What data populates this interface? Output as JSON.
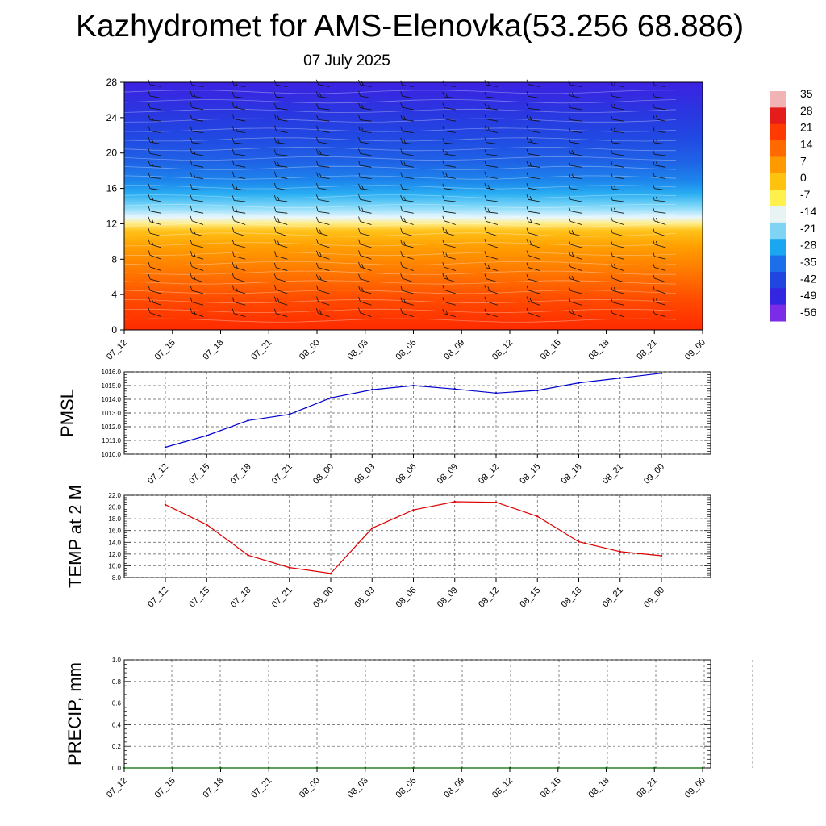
{
  "title": "Kazhydromet for AMS-Elenovka(53.256 68.886)",
  "subtitle": "07 July 2025",
  "colors": {
    "pmsl_line": "#0000cc",
    "temp_line": "#dd0000",
    "precip_line": "#006400",
    "grid": "#555555"
  },
  "chart_data": [
    {
      "type": "heatmap",
      "title": "",
      "x_ticks": [
        "07_12",
        "07_15",
        "07_18",
        "07_21",
        "08_00",
        "08_03",
        "08_06",
        "08_09",
        "08_12",
        "08_15",
        "08_18",
        "08_21",
        "09_00"
      ],
      "y_ticks": [
        "0",
        "4",
        "8",
        "12",
        "16",
        "20",
        "24",
        "28"
      ],
      "ylim": [
        0,
        28
      ],
      "colorbar": {
        "labels": [
          "35",
          "28",
          "21",
          "14",
          "7",
          "0",
          "-7",
          "-14",
          "-21",
          "-28",
          "-35",
          "-42",
          "-49",
          "-56"
        ],
        "colors": [
          "#f1b3b3",
          "#e51c1c",
          "#ff3a00",
          "#ff6a00",
          "#ff9900",
          "#ffc20e",
          "#fff04d",
          "#e8f4f4",
          "#7fd4f3",
          "#1aa6f0",
          "#1c6fe8",
          "#2146e0",
          "#3326e0",
          "#7a2ce6"
        ]
      },
      "wind_barbs": true
    },
    {
      "type": "line",
      "ylabel": "PMSL",
      "x_ticks": [
        "07_12",
        "07_15",
        "07_18",
        "07_21",
        "08_00",
        "08_03",
        "08_06",
        "08_09",
        "08_12",
        "08_15",
        "08_18",
        "08_21",
        "09_00"
      ],
      "y_ticks": [
        "1010.0",
        "1011.0",
        "1012.0",
        "1013.0",
        "1014.0",
        "1015.0",
        "1016.0"
      ],
      "ylim": [
        1010.0,
        1016.0
      ],
      "grid": true,
      "series": [
        {
          "values": [
            1010.5,
            1011.35,
            1012.45,
            1012.9,
            1014.1,
            1014.7,
            1015.0,
            1014.75,
            1014.45,
            1014.65,
            1015.2,
            1015.55,
            1015.9
          ]
        }
      ]
    },
    {
      "type": "line",
      "ylabel": "TEMP at 2 M",
      "x_ticks": [
        "07_12",
        "07_15",
        "07_18",
        "07_21",
        "08_00",
        "08_03",
        "08_06",
        "08_09",
        "08_12",
        "08_15",
        "08_18",
        "08_21",
        "09_00"
      ],
      "y_ticks": [
        "8.0",
        "10.0",
        "12.0",
        "14.0",
        "16.0",
        "18.0",
        "20.0",
        "22.0"
      ],
      "ylim": [
        8.0,
        22.0
      ],
      "grid": true,
      "series": [
        {
          "values": [
            20.4,
            17.0,
            11.8,
            9.7,
            8.7,
            16.4,
            19.5,
            20.9,
            20.8,
            18.4,
            14.1,
            12.4,
            11.7
          ]
        }
      ]
    },
    {
      "type": "line",
      "ylabel": "PRECIP, mm",
      "x_ticks": [
        "07_12",
        "07_15",
        "07_18",
        "07_21",
        "08_00",
        "08_03",
        "08_06",
        "08_09",
        "08_12",
        "08_15",
        "08_18",
        "08_21",
        "09_00"
      ],
      "y_ticks": [
        "0.0",
        "0.2",
        "0.4",
        "0.6",
        "0.8",
        "1.0"
      ],
      "ylim": [
        0.0,
        1.0
      ],
      "grid": true,
      "series": [
        {
          "values": [
            0,
            0,
            0,
            0,
            0,
            0,
            0,
            0,
            0,
            0,
            0,
            0,
            0
          ]
        }
      ]
    }
  ]
}
